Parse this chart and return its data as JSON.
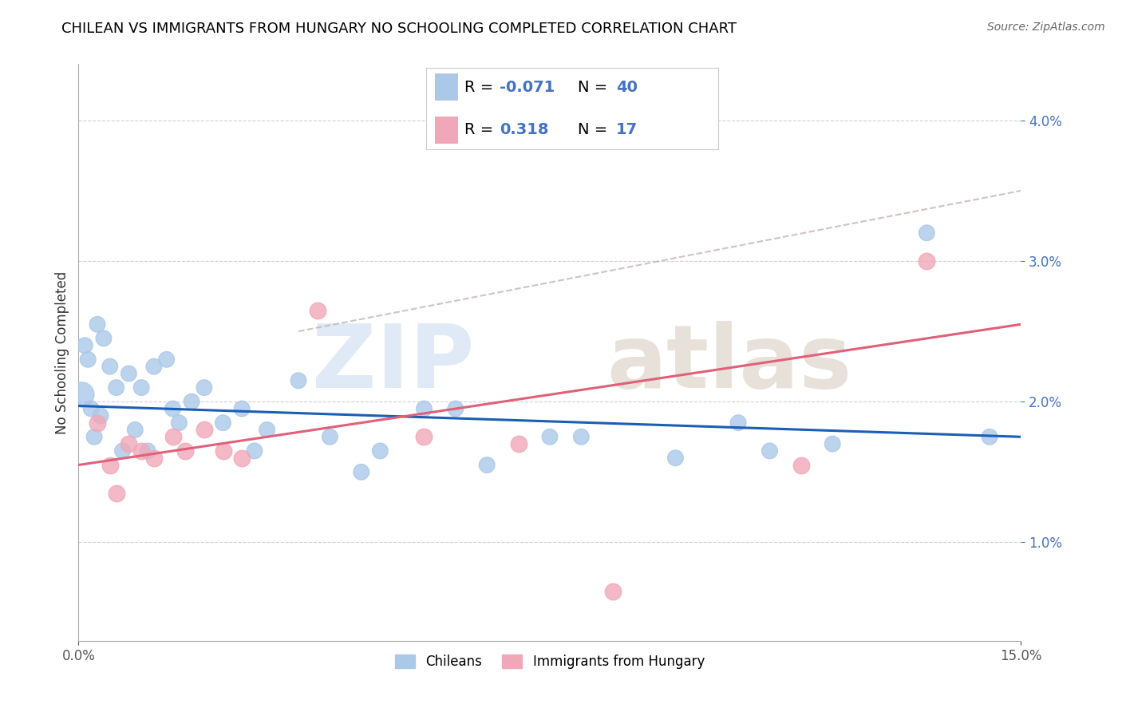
{
  "title": "CHILEAN VS IMMIGRANTS FROM HUNGARY NO SCHOOLING COMPLETED CORRELATION CHART",
  "source": "Source: ZipAtlas.com",
  "ylabel": "No Schooling Completed",
  "legend_bottom_1": "Chileans",
  "legend_bottom_2": "Immigrants from Hungary",
  "blue_dot_color": "#aac8e8",
  "pink_dot_color": "#f0a8b8",
  "blue_line_color": "#1a5eb8",
  "pink_line_color": "#e0607a",
  "dash_color": "#ccaaaa",
  "watermark_zip_color": "#d0dff0",
  "watermark_atlas_color": "#d8ccc0",
  "legend_text_color": "#4472c4",
  "ytick_color": "#4472c4",
  "title_fontsize": 13,
  "source_fontsize": 10,
  "legend_fontsize": 14,
  "tick_fontsize": 12,
  "xmin": 0.0,
  "xmax": 15.0,
  "ymin": 0.3,
  "ymax": 4.4,
  "yticks": [
    1.0,
    2.0,
    3.0,
    4.0
  ],
  "xticks": [
    0.0,
    15.0
  ],
  "chileans_x": [
    0.05,
    0.1,
    0.15,
    0.2,
    0.3,
    0.4,
    0.5,
    0.6,
    0.7,
    0.8,
    0.9,
    1.0,
    1.1,
    1.2,
    1.4,
    1.6,
    1.8,
    2.0,
    2.3,
    2.6,
    3.0,
    3.5,
    4.0,
    4.8,
    5.5,
    6.5,
    7.5,
    8.0,
    9.5,
    10.5,
    11.0,
    12.0,
    13.5,
    14.5,
    0.25,
    0.35,
    1.5,
    2.8,
    4.5,
    6.0
  ],
  "chileans_y": [
    2.05,
    2.4,
    2.3,
    1.95,
    2.55,
    2.45,
    2.25,
    2.1,
    1.65,
    2.2,
    1.8,
    2.1,
    1.65,
    2.25,
    2.3,
    1.85,
    2.0,
    2.1,
    1.85,
    1.95,
    1.8,
    2.15,
    1.75,
    1.65,
    1.95,
    1.55,
    1.75,
    1.75,
    1.6,
    1.85,
    1.65,
    1.7,
    3.2,
    1.75,
    1.75,
    1.9,
    1.95,
    1.65,
    1.5,
    1.95
  ],
  "chileans_size": [
    500,
    200,
    200,
    200,
    200,
    200,
    200,
    200,
    200,
    200,
    200,
    200,
    200,
    200,
    200,
    200,
    200,
    200,
    200,
    200,
    200,
    200,
    200,
    200,
    200,
    200,
    200,
    200,
    200,
    200,
    200,
    200,
    200,
    200,
    200,
    200,
    200,
    200,
    200,
    200
  ],
  "hungary_x": [
    0.3,
    0.5,
    0.8,
    1.0,
    1.2,
    1.5,
    1.7,
    2.0,
    2.3,
    2.6,
    3.8,
    5.5,
    7.0,
    8.5,
    11.5,
    13.5,
    0.6
  ],
  "hungary_y": [
    1.85,
    1.55,
    1.7,
    1.65,
    1.6,
    1.75,
    1.65,
    1.8,
    1.65,
    1.6,
    2.65,
    1.75,
    1.7,
    0.65,
    1.55,
    3.0,
    1.35
  ],
  "blue_trend_x0": 0.0,
  "blue_trend_y0": 1.97,
  "blue_trend_x1": 15.0,
  "blue_trend_y1": 1.75,
  "pink_trend_x0": 0.0,
  "pink_trend_y0": 1.55,
  "pink_trend_x1": 15.0,
  "pink_trend_y1": 2.55,
  "dash_trend_x0": 3.5,
  "dash_trend_y0": 2.5,
  "dash_trend_x1": 15.0,
  "dash_trend_y1": 3.5
}
